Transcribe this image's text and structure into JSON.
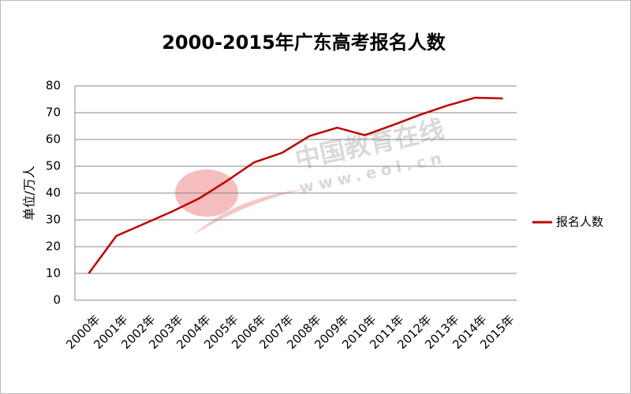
{
  "chart_data": {
    "type": "line",
    "title": "2000-2015年广东高考报名人数",
    "y_label": "单位/万人",
    "categories": [
      "2000年",
      "2001年",
      "2002年",
      "2003年",
      "2004年",
      "2005年",
      "2006年",
      "2007年",
      "2008年",
      "2009年",
      "2010年",
      "2011年",
      "2012年",
      "2013年",
      "2014年",
      "2015年"
    ],
    "series": [
      {
        "name": "报名人数",
        "color": "#c00000",
        "values": [
          10,
          24,
          28.5,
          33,
          38,
          44.5,
          51.5,
          55,
          61.3,
          64.4,
          61.6,
          65.3,
          69.2,
          72.7,
          75.6,
          75.3
        ]
      }
    ],
    "ylim": [
      0,
      80
    ],
    "yticks": [
      0,
      10,
      20,
      30,
      40,
      50,
      60,
      70,
      80
    ],
    "grid": true,
    "legend": "right",
    "watermark": [
      "中国教育在线",
      "www.eol.cn"
    ]
  }
}
